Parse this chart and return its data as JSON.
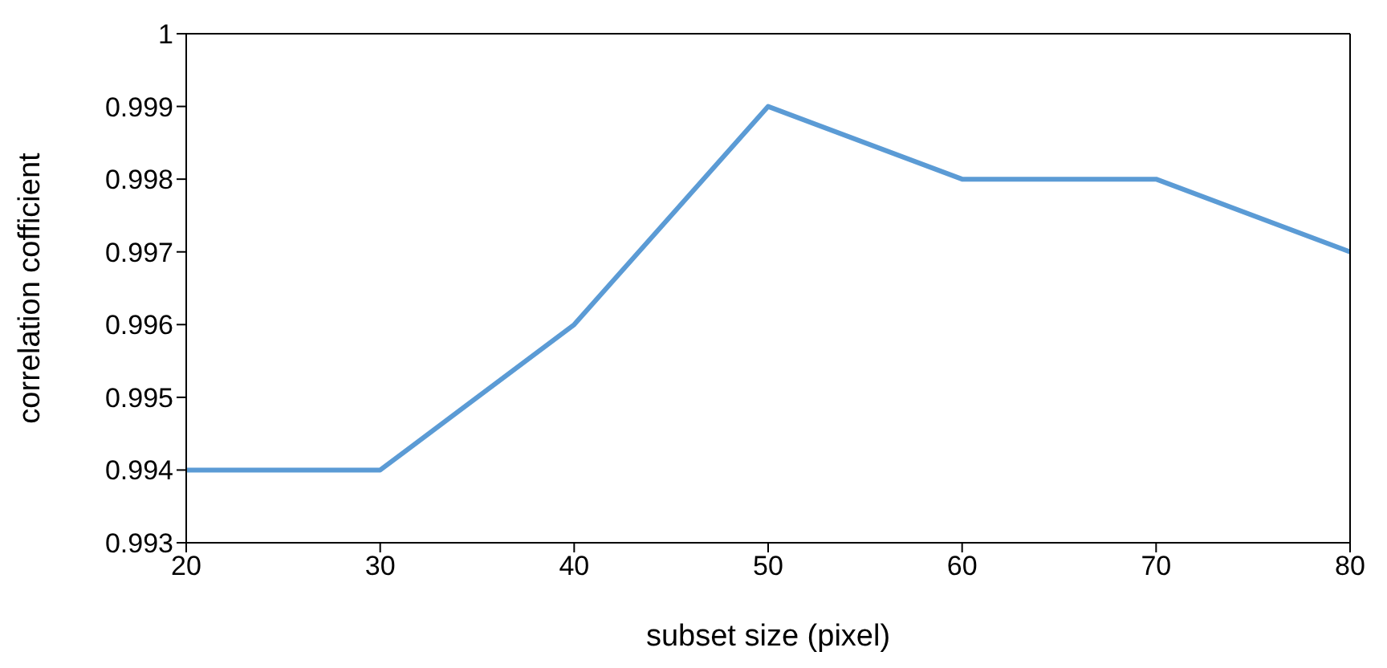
{
  "chart_data": {
    "type": "line",
    "xlabel": "subset size (pixel)",
    "ylabel": "correlation cofficient",
    "x": [
      20,
      30,
      40,
      50,
      60,
      70,
      80
    ],
    "series": [
      {
        "color": "#5b9bd5",
        "values": [
          0.994,
          0.994,
          0.996,
          0.999,
          0.998,
          0.998,
          0.997
        ]
      }
    ],
    "xlim": [
      20,
      80
    ],
    "xticks": [
      20,
      30,
      40,
      50,
      60,
      70,
      80
    ],
    "ylim": [
      0.993,
      1
    ],
    "yticks": [
      0.993,
      0.994,
      0.995,
      0.996,
      0.997,
      0.998,
      0.999,
      1
    ],
    "marker": "none",
    "line_style": "solid"
  }
}
